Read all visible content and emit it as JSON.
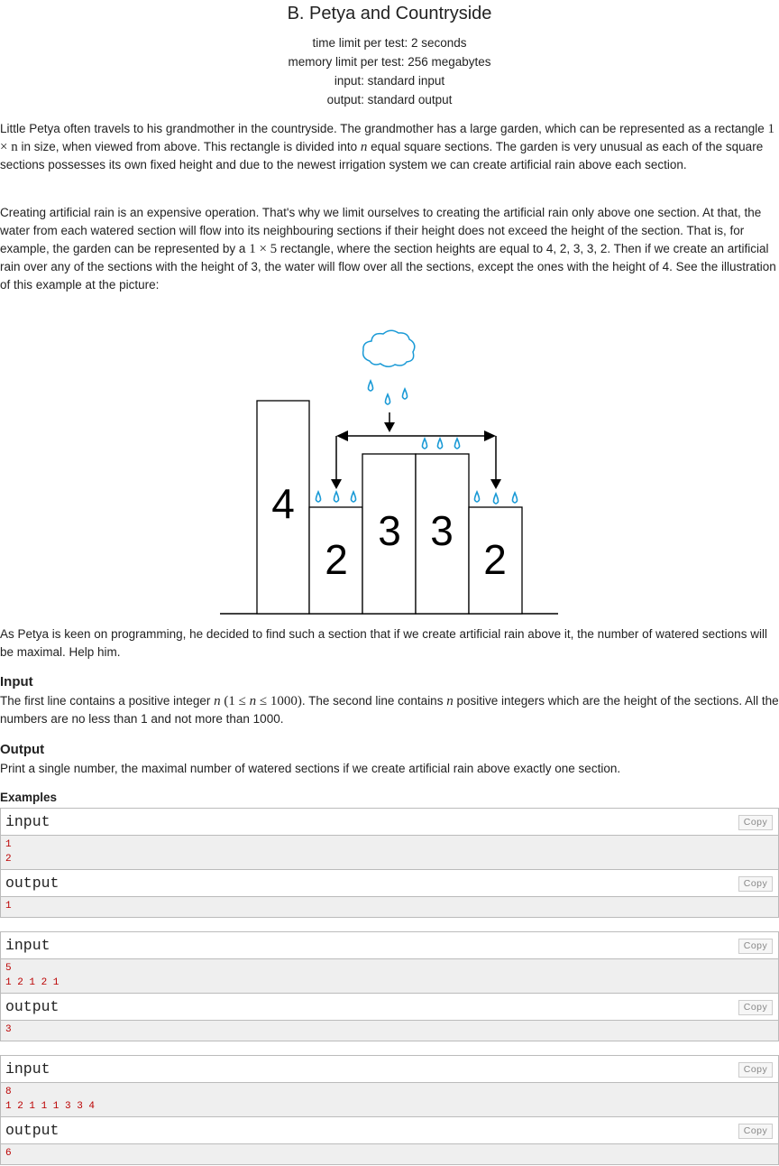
{
  "header": {
    "title": "B. Petya and Countryside",
    "time_limit": "time limit per test: 2 seconds",
    "memory_limit": "memory limit per test: 256 megabytes",
    "input": "input: standard input",
    "output": "output: standard output"
  },
  "statement": {
    "p1_a": "Little Petya often travels to his grandmother in the countryside. The grandmother has a large garden, which can be represented as a rectangle ",
    "p1_m1": "1 × n",
    "p1_b": " in size, when viewed from above. This rectangle is divided into ",
    "p1_m2": "n",
    "p1_c": " equal square sections. The garden is very unusual as each of the square sections possesses its own fixed height and due to the newest irrigation system we can create artificial rain above each section.",
    "p2_a": "Creating artificial rain is an expensive operation. That's why we limit ourselves to creating the artificial rain only above one section. At that, the water from each watered section will flow into its neighbouring sections if their height does not exceed the height of the section. That is, for example, the garden can be represented by a ",
    "p2_m1": "1 × 5",
    "p2_b": " rectangle, where the section heights are equal to 4, 2, 3, 3, 2. Then if we create an artificial rain over any of the sections with the height of 3, the water will flow over all the sections, except the ones with the height of 4. See the illustration of this example at the picture:",
    "p3": "As Petya is keen on programming, he decided to find such a section that if we create artificial rain above it, the number of watered sections will be maximal. Help him."
  },
  "figure": {
    "heights": [
      4,
      2,
      3,
      3,
      2
    ],
    "labels": [
      "4",
      "2",
      "3",
      "3",
      "2"
    ],
    "water_color": "#1a9ad6"
  },
  "input_section": {
    "title": "Input",
    "a": "The first line contains a positive integer ",
    "m1": "n",
    "m2": " (1 ≤ ",
    "m3": "n",
    "m4": " ≤ 1000)",
    "b": ". The second line contains ",
    "m5": "n",
    "c": " positive integers which are the height of the sections. All the numbers are no less than 1 and not more than 1000."
  },
  "output_section": {
    "title": "Output",
    "text": "Print a single number, the maximal number of watered sections if we create artificial rain above exactly one section."
  },
  "examples": {
    "title": "Examples",
    "input_label": "input",
    "output_label": "output",
    "copy_label": "Copy",
    "items": [
      {
        "input": [
          "1",
          "2"
        ],
        "output": [
          "1"
        ]
      },
      {
        "input": [
          "5",
          "1 2 1 2 1"
        ],
        "output": [
          "3"
        ]
      },
      {
        "input": [
          "8",
          "1 2 1 1 1 3 3 4"
        ],
        "output": [
          "6"
        ]
      }
    ]
  }
}
